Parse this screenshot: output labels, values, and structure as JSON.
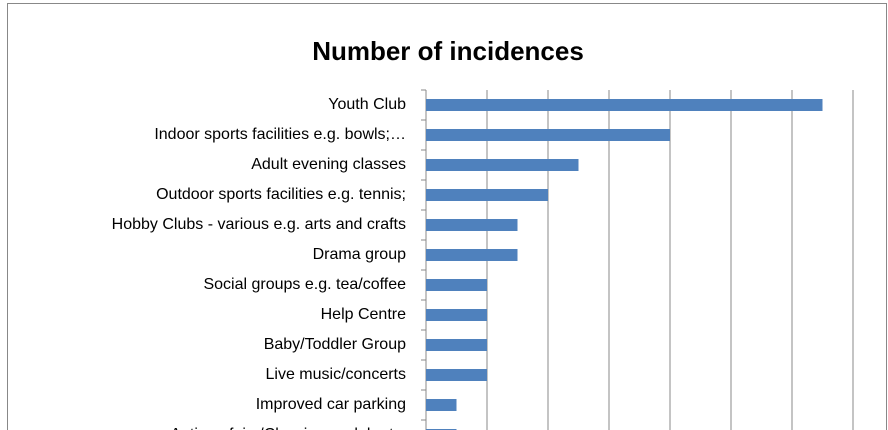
{
  "chart_data": {
    "type": "hbar",
    "title": "Number of incidences",
    "categories": [
      "Youth Club",
      "Indoor sports facilities e.g. bowls;…",
      "Adult evening classes",
      "Outdoor sports facilities e.g. tennis;",
      "Hobby Clubs - various e.g. arts and crafts",
      "Drama group",
      "Social groups e.g. tea/coffee",
      "Help Centre",
      "Baby/Toddler Group",
      "Live music/concerts",
      "Improved car parking",
      "Antique fairs/Classic car club etc."
    ],
    "values": [
      13,
      8,
      5,
      4,
      3,
      3,
      2,
      2,
      2,
      2,
      1,
      1
    ],
    "color": "#4f81bd",
    "xlim": [
      0,
      14
    ],
    "xticks": [
      0,
      2,
      4,
      6,
      8,
      10,
      12,
      14
    ],
    "grid": true
  }
}
